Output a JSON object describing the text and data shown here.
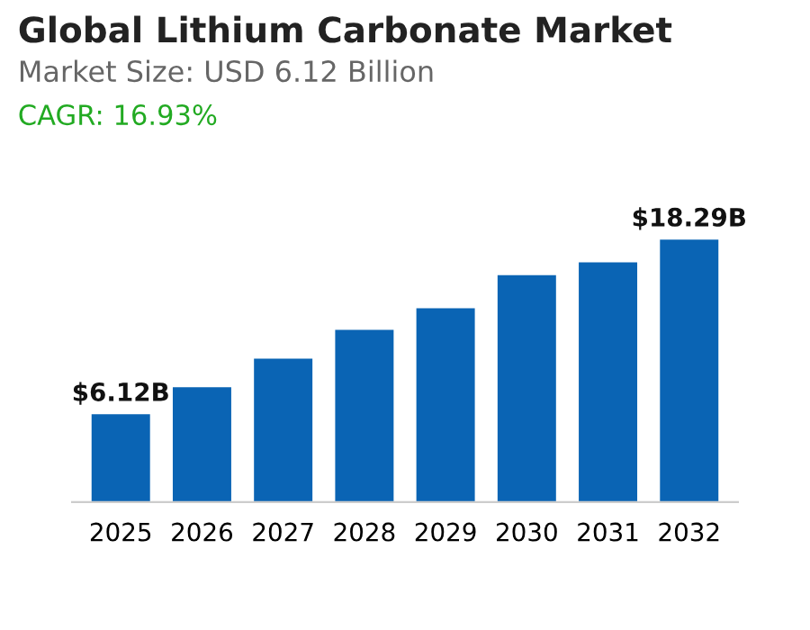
{
  "chart_data": {
    "type": "bar",
    "title": "Global Lithium Carbonate Market",
    "subtitle": "Market Size: USD 6.12 Billion",
    "annotations": [
      "CAGR: 16.93%"
    ],
    "categories": [
      "2025",
      "2026",
      "2027",
      "2028",
      "2029",
      "2030",
      "2031",
      "2032"
    ],
    "values": [
      6.12,
      8.0,
      10.0,
      12.0,
      13.5,
      15.8,
      16.7,
      18.29
    ],
    "value_labels": [
      "$6.12B",
      null,
      null,
      null,
      null,
      null,
      null,
      "$18.29B"
    ],
    "color": "#0a64b4",
    "tick_labels": "x",
    "grid": false,
    "legend": false
  }
}
